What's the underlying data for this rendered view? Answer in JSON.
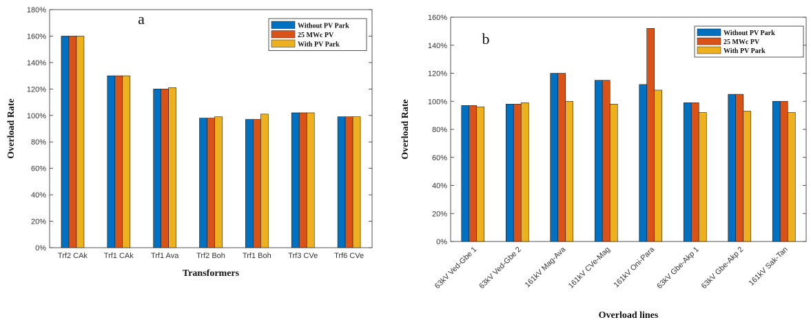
{
  "chart_data": [
    {
      "type": "bar",
      "panel_label": "a",
      "title": "",
      "xlabel": "Transformers",
      "ylabel": "Overload Rate",
      "ylim": [
        0,
        180
      ],
      "ytick_step": 20,
      "ytick_suffix": "%",
      "grid": false,
      "legend_position": "top-right",
      "categories": [
        "Trf2 CAk",
        "Trf1 CAk",
        "Trf1 Ava",
        "Trf2 Boh",
        "Trf1 Boh",
        "Trf3 CVe",
        "Trf6 CVe"
      ],
      "series": [
        {
          "name": "Without PV Park",
          "color": "#0070c0",
          "values": [
            160,
            130,
            120,
            98,
            97,
            102,
            99
          ]
        },
        {
          "name": "25 MWc PV",
          "color": "#d95319",
          "values": [
            160,
            130,
            120,
            98,
            97,
            102,
            99
          ]
        },
        {
          "name": "With PV Park",
          "color": "#edb120",
          "values": [
            160,
            130,
            121,
            99,
            101,
            102,
            99
          ]
        }
      ]
    },
    {
      "type": "bar",
      "panel_label": "b",
      "title": "",
      "xlabel": "Overload lines",
      "ylabel": "Overload Rate",
      "ylim": [
        0,
        160
      ],
      "ytick_step": 20,
      "ytick_suffix": "%",
      "grid": false,
      "legend_position": "top-right",
      "categories": [
        "63kV Ved-Gbe 1",
        "63kV Ved-Gbe 2",
        "161kV Mag-Ava",
        "161kV CVe-Mag",
        "161kV Oni-Para",
        "63kV Gbe-Akp 1",
        "63kV Gbe-Akp 2",
        "161kV Sak-Tan"
      ],
      "series": [
        {
          "name": "Without PV Park",
          "color": "#0070c0",
          "values": [
            97,
            98,
            120,
            115,
            112,
            99,
            105,
            100
          ]
        },
        {
          "name": "25 MWc PV",
          "color": "#d95319",
          "values": [
            97,
            98,
            120,
            115,
            152,
            99,
            105,
            100
          ]
        },
        {
          "name": "With PV Park",
          "color": "#edb120",
          "values": [
            96,
            99,
            100,
            98,
            108,
            92,
            93,
            92
          ]
        }
      ]
    }
  ]
}
